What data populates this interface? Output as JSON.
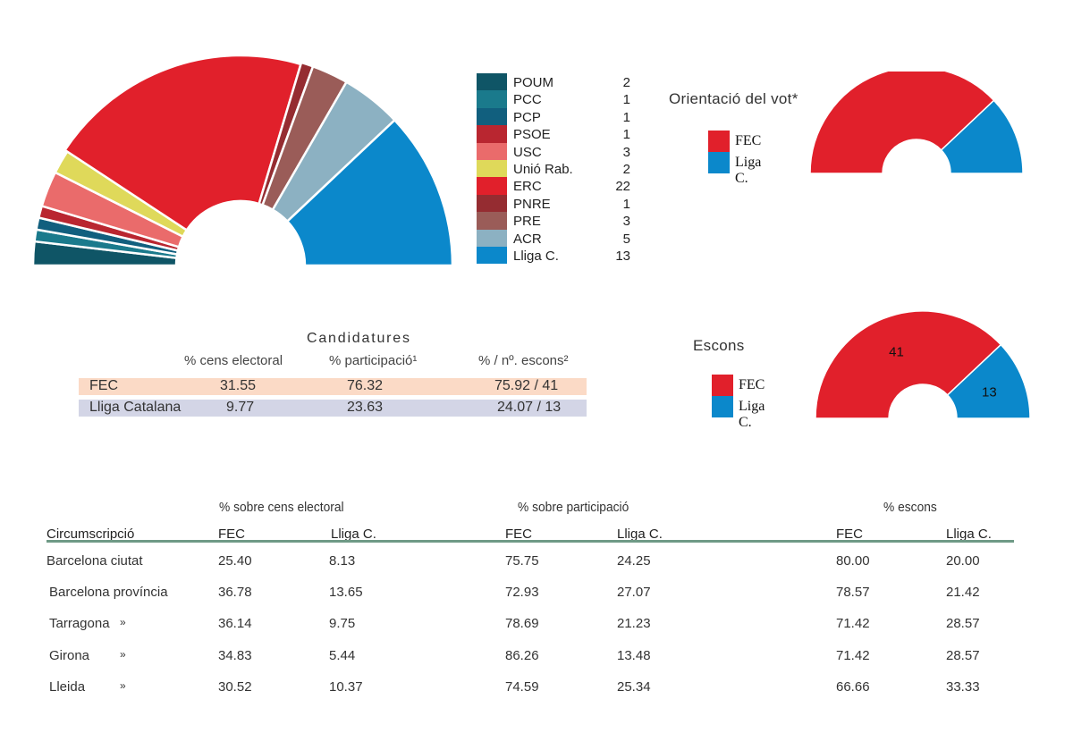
{
  "chart_data": [
    {
      "type": "pie",
      "subtype": "semicircle-parliament",
      "categories": [
        "POUM",
        "PCC",
        "PCP",
        "PSOE",
        "USC",
        "Unió Rab.",
        "ERC",
        "PNRE",
        "PRE",
        "ACR",
        "Lliga C."
      ],
      "values": [
        2,
        1,
        1,
        1,
        3,
        2,
        22,
        1,
        3,
        5,
        13
      ],
      "colors": [
        "#0f5566",
        "#1a7a8c",
        "#115f7e",
        "#b92630",
        "#ea6b6b",
        "#dfd95a",
        "#e1202b",
        "#952c31",
        "#9a5c58",
        "#8cb1c2",
        "#0b88cb"
      ],
      "legend_position": "right"
    },
    {
      "type": "pie",
      "subtype": "semicircle",
      "title": "Orientació del vot*",
      "categories": [
        "FEC",
        "Liga C."
      ],
      "values": [
        75.92,
        24.07
      ],
      "colors": [
        "#e1202b",
        "#0b88cb"
      ],
      "legend_position": "left"
    },
    {
      "type": "pie",
      "subtype": "semicircle",
      "title": "Escons",
      "categories": [
        "FEC",
        "Liga C."
      ],
      "values": [
        41,
        13
      ],
      "data_labels": [
        "41",
        "13"
      ],
      "colors": [
        "#e1202b",
        "#0b88cb"
      ],
      "legend_position": "left"
    },
    {
      "type": "table",
      "title": "Candidatures",
      "columns": [
        "% cens electoral",
        "% participació¹",
        "% / nº. escons²"
      ],
      "rows": [
        {
          "label": "FEC",
          "values": [
            "31.55",
            "76.32",
            "75.92 / 41"
          ],
          "color": "#fbdac6"
        },
        {
          "label": "Lliga Catalana",
          "values": [
            "9.77",
            "23.63",
            "24.07 / 13"
          ],
          "color": "#d3d5e6"
        }
      ]
    },
    {
      "type": "table",
      "groups": [
        "% sobre cens electoral",
        "% sobre participació",
        "% escons"
      ],
      "columns": [
        "Circumscripció",
        "FEC",
        "Lliga C.",
        "FEC",
        "Lliga C.",
        "FEC",
        "Lliga C."
      ],
      "rows": [
        {
          "name": "Barcelona ciutat",
          "mark": "",
          "values": [
            "25.40",
            "8.13",
            "75.75",
            "24.25",
            "80.00",
            "20.00"
          ]
        },
        {
          "name": "Barcelona província",
          "mark": "",
          "values": [
            "36.78",
            "13.65",
            "72.93",
            "27.07",
            "78.57",
            "21.42"
          ]
        },
        {
          "name": "Tarragona",
          "mark": "»",
          "values": [
            "36.14",
            "9.75",
            "78.69",
            "21.23",
            "71.42",
            "28.57"
          ]
        },
        {
          "name": "Girona",
          "mark": "»",
          "values": [
            "34.83",
            "5.44",
            "86.26",
            "13.48",
            "71.42",
            "28.57"
          ]
        },
        {
          "name": "Lleida",
          "mark": "»",
          "values": [
            "30.52",
            "10.37",
            "74.59",
            "25.34",
            "66.66",
            "33.33"
          ]
        }
      ]
    }
  ]
}
